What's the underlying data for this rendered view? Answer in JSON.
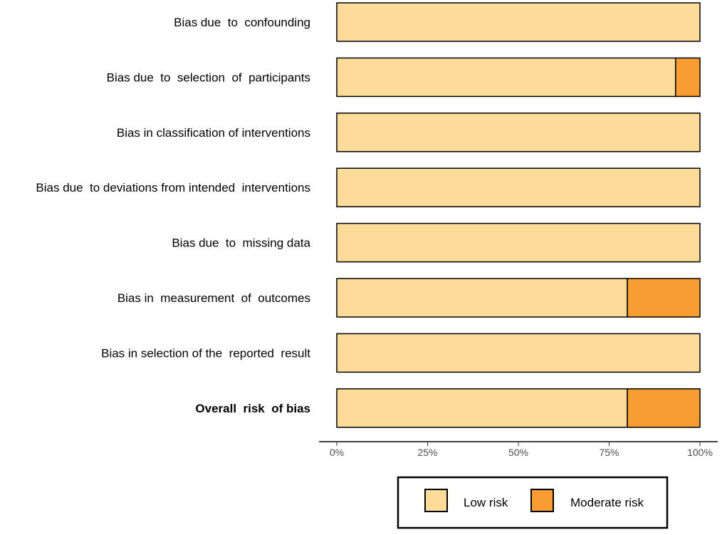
{
  "chart_data": {
    "type": "bar",
    "orientation": "horizontal",
    "stacked": true,
    "categories": [
      "Bias due  to  confounding",
      "Bias due  to  selection  of  participants",
      "Bias in classification of interventions",
      "Bias due  to deviations from intended  interventions",
      "Bias due  to  missing data",
      "Bias in  measurement  of  outcomes",
      "Bias in selection of the  reported  result",
      "Overall  risk  of bias"
    ],
    "bold_categories": [
      "Overall  risk  of bias"
    ],
    "series": [
      {
        "name": "Low risk",
        "color": "#FDDC99",
        "values": [
          100,
          93.3,
          100,
          100,
          100,
          80,
          100,
          80
        ]
      },
      {
        "name": "Moderate risk",
        "color": "#F99D32",
        "values": [
          0,
          6.7,
          0,
          0,
          0,
          20,
          0,
          20
        ]
      }
    ],
    "xlim": [
      0,
      100
    ],
    "xticks": [
      "0%",
      "25%",
      "50%",
      "75%",
      "100%"
    ],
    "grid": false,
    "legend_position": "bottom"
  }
}
